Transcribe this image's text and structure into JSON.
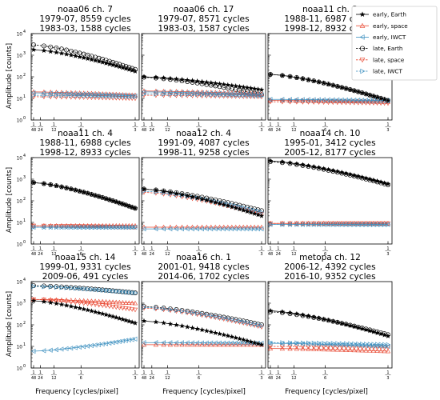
{
  "figure": {
    "ylabel": "Amplitude [counts]",
    "xlabel": "Frequency [cycles/pixel]",
    "x_tick_labels": [
      "1",
      "1",
      "1",
      "1",
      "1"
    ],
    "x_tick_denominators": [
      "48",
      "24",
      "12",
      "6",
      "3"
    ],
    "y_tick_labels": [
      "10",
      "10",
      "10",
      "10",
      "10"
    ],
    "y_tick_exponents": [
      "0",
      "1",
      "2",
      "3",
      "4"
    ]
  },
  "legend": {
    "placement": "top-right, outside the plot grid",
    "entries": [
      {
        "label": "early, Earth",
        "color": "#000000",
        "marker": "star",
        "line": "solid"
      },
      {
        "label": "early, space",
        "color": "#e8432c",
        "marker": "triangle-up",
        "line": "solid"
      },
      {
        "label": "early, IWCT",
        "color": "#3b8fbf",
        "marker": "triangle-left",
        "line": "solid"
      },
      {
        "label": "late, Earth",
        "color": "#000000",
        "marker": "circle",
        "line": "dashed"
      },
      {
        "label": "late, space",
        "color": "#e8432c",
        "marker": "triangle-down",
        "line": "dashed"
      },
      {
        "label": "late, IWCT",
        "color": "#3b8fbf",
        "marker": "triangle-right",
        "line": "dashed"
      }
    ]
  },
  "chart_data": [
    {
      "type": "line",
      "title": [
        "noaa06 ch. 7",
        "1979-07, 8559 cycles",
        "1983-03, 1588 cycles"
      ],
      "xscale": "reciprocal",
      "yscale": "log",
      "ylim": [
        1,
        10000
      ],
      "grid": false,
      "series": [
        {
          "name": "early, Earth",
          "y0": 1800,
          "y1": 180
        },
        {
          "name": "early, space",
          "y0": 20,
          "y1": 14
        },
        {
          "name": "early, IWCT",
          "y0": 18,
          "y1": 13
        },
        {
          "name": "late, Earth",
          "y0": 3000,
          "y1": 220
        },
        {
          "name": "late, space",
          "y0": 12,
          "y1": 10
        },
        {
          "name": "late, IWCT",
          "y0": 14,
          "y1": 12
        }
      ]
    },
    {
      "type": "line",
      "title": [
        "noaa06 ch. 17",
        "1979-07, 8571 cycles",
        "1983-03, 1587 cycles"
      ],
      "xscale": "reciprocal",
      "yscale": "log",
      "ylim": [
        1,
        10000
      ],
      "grid": false,
      "series": [
        {
          "name": "early, Earth",
          "y0": 100,
          "y1": 25
        },
        {
          "name": "early, space",
          "y0": 22,
          "y1": 16
        },
        {
          "name": "early, IWCT",
          "y0": 20,
          "y1": 15
        },
        {
          "name": "late, Earth",
          "y0": 95,
          "y1": 15
        },
        {
          "name": "late, space",
          "y0": 14,
          "y1": 12
        },
        {
          "name": "late, IWCT",
          "y0": 16,
          "y1": 13
        }
      ]
    },
    {
      "type": "line",
      "title": [
        "noaa11 ch. 3",
        "1988-11, 6987 cycles",
        "1998-12, 8932 cycles"
      ],
      "xscale": "reciprocal",
      "yscale": "log",
      "ylim": [
        1,
        10000
      ],
      "grid": false,
      "series": [
        {
          "name": "early, Earth",
          "y0": 130,
          "y1": 8
        },
        {
          "name": "early, space",
          "y0": 8,
          "y1": 7
        },
        {
          "name": "early, IWCT",
          "y0": 9,
          "y1": 8
        },
        {
          "name": "late, Earth",
          "y0": 130,
          "y1": 8
        },
        {
          "name": "late, space",
          "y0": 7,
          "y1": 6
        },
        {
          "name": "late, IWCT",
          "y0": 8,
          "y1": 7
        }
      ]
    },
    {
      "type": "line",
      "title": [
        "noaa11 ch. 4",
        "1988-11, 6988 cycles",
        "1998-12, 8933 cycles"
      ],
      "xscale": "reciprocal",
      "yscale": "log",
      "ylim": [
        1,
        10000
      ],
      "grid": false,
      "series": [
        {
          "name": "early, Earth",
          "y0": 700,
          "y1": 45
        },
        {
          "name": "early, space",
          "y0": 7,
          "y1": 7
        },
        {
          "name": "early, IWCT",
          "y0": 6,
          "y1": 6
        },
        {
          "name": "late, Earth",
          "y0": 700,
          "y1": 45
        },
        {
          "name": "late, space",
          "y0": 7,
          "y1": 6
        },
        {
          "name": "late, IWCT",
          "y0": 6,
          "y1": 6
        }
      ]
    },
    {
      "type": "line",
      "title": [
        "noaa12 ch. 4",
        "1991-09, 4087 cycles",
        "1998-11, 9258 cycles"
      ],
      "xscale": "reciprocal",
      "yscale": "log",
      "ylim": [
        1,
        10000
      ],
      "grid": false,
      "series": [
        {
          "name": "early, Earth",
          "y0": 350,
          "y1": 20
        },
        {
          "name": "early, space",
          "y0": 6,
          "y1": 6
        },
        {
          "name": "early, IWCT",
          "y0": 5,
          "y1": 5
        },
        {
          "name": "late, Earth",
          "y0": 350,
          "y1": 35
        },
        {
          "name": "late, space",
          "y0": 250,
          "y1": 25
        },
        {
          "name": "late, IWCT",
          "y0": 280,
          "y1": 30
        }
      ]
    },
    {
      "type": "line",
      "title": [
        "noaa14 ch. 10",
        "1995-01, 3412 cycles",
        "2005-12, 8177 cycles"
      ],
      "xscale": "reciprocal",
      "yscale": "log",
      "ylim": [
        1,
        10000
      ],
      "grid": false,
      "series": [
        {
          "name": "early, Earth",
          "y0": 7000,
          "y1": 600
        },
        {
          "name": "early, space",
          "y0": 9,
          "y1": 9
        },
        {
          "name": "early, IWCT",
          "y0": 8,
          "y1": 8
        },
        {
          "name": "late, Earth",
          "y0": 6500,
          "y1": 550
        },
        {
          "name": "late, space",
          "y0": 9,
          "y1": 9
        },
        {
          "name": "late, IWCT",
          "y0": 8,
          "y1": 8
        }
      ]
    },
    {
      "type": "line",
      "title": [
        "noaa15 ch. 14",
        "1999-01, 9331 cycles",
        "2009-06, 491 cycles"
      ],
      "xscale": "reciprocal",
      "yscale": "log",
      "ylim": [
        1,
        10000
      ],
      "grid": false,
      "series": [
        {
          "name": "early, Earth",
          "y0": 1300,
          "y1": 120
        },
        {
          "name": "early, space",
          "y0": 1500,
          "y1": 1000
        },
        {
          "name": "early, IWCT",
          "y0": 6,
          "y1": 22
        },
        {
          "name": "late, Earth",
          "y0": 6500,
          "y1": 3000
        },
        {
          "name": "late, space",
          "y0": 1500,
          "y1": 500
        },
        {
          "name": "late, IWCT",
          "y0": 6000,
          "y1": 3000
        }
      ]
    },
    {
      "type": "line",
      "title": [
        "noaa16 ch. 1",
        "2001-01, 9418 cycles",
        "2014-06, 1702 cycles"
      ],
      "xscale": "reciprocal",
      "yscale": "log",
      "ylim": [
        1,
        10000
      ],
      "grid": false,
      "series": [
        {
          "name": "early, Earth",
          "y0": 150,
          "y1": 12
        },
        {
          "name": "early, space",
          "y0": 12,
          "y1": 12
        },
        {
          "name": "early, IWCT",
          "y0": 15,
          "y1": 14
        },
        {
          "name": "late, Earth",
          "y0": 700,
          "y1": 100
        },
        {
          "name": "late, space",
          "y0": 600,
          "y1": 80
        },
        {
          "name": "late, IWCT",
          "y0": 650,
          "y1": 90
        }
      ]
    },
    {
      "type": "line",
      "title": [
        "metopa ch. 12",
        "2006-12, 4392 cycles",
        "2016-10, 9352 cycles"
      ],
      "xscale": "reciprocal",
      "yscale": "log",
      "ylim": [
        1,
        10000
      ],
      "grid": false,
      "series": [
        {
          "name": "early, Earth",
          "y0": 450,
          "y1": 30
        },
        {
          "name": "early, space",
          "y0": 8,
          "y1": 6
        },
        {
          "name": "early, IWCT",
          "y0": 14,
          "y1": 10
        },
        {
          "name": "late, Earth",
          "y0": 400,
          "y1": 35
        },
        {
          "name": "late, space",
          "y0": 10,
          "y1": 9
        },
        {
          "name": "late, IWCT",
          "y0": 15,
          "y1": 12
        }
      ]
    }
  ]
}
